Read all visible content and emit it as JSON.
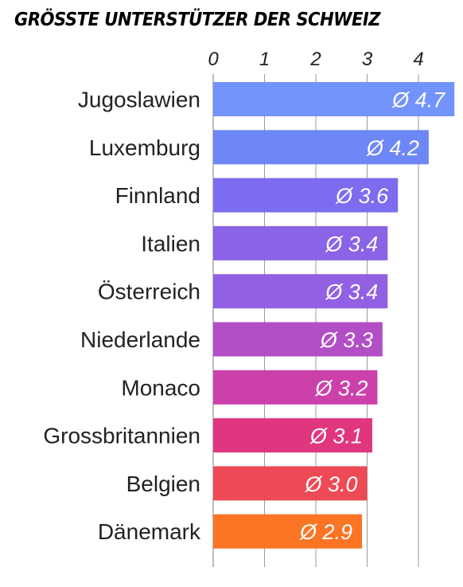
{
  "chart_data": {
    "type": "bar",
    "orientation": "horizontal",
    "title": "GRÖSSTE UNTERSTÜTZER DER SCHWEIZ",
    "categories": [
      "Jugoslawien",
      "Luxemburg",
      "Finnland",
      "Italien",
      "Österreich",
      "Niederlande",
      "Monaco",
      "Grossbritannien",
      "Belgien",
      "Dänemark"
    ],
    "values": [
      4.7,
      4.2,
      3.6,
      3.4,
      3.4,
      3.3,
      3.2,
      3.1,
      3.0,
      2.9
    ],
    "value_labels": [
      "Ø 4.7",
      "Ø 4.2",
      "Ø 3.6",
      "Ø 3.4",
      "Ø 3.4",
      "Ø 3.3",
      "Ø 3.2",
      "Ø 3.1",
      "Ø 3.0",
      "Ø 2.9"
    ],
    "bar_colors": [
      "#7293fb",
      "#6d87f7",
      "#7c6cf0",
      "#8a63e6",
      "#9160e3",
      "#b24ec6",
      "#cc40aa",
      "#e0367f",
      "#ed4a55",
      "#fb7524"
    ],
    "xaxis": {
      "position": "top",
      "ticks": [
        0,
        1,
        2,
        3,
        4
      ],
      "tick_labels": [
        "0",
        "1",
        "2",
        "3",
        "4"
      ],
      "range": [
        0,
        4.7
      ]
    },
    "grid": true
  }
}
